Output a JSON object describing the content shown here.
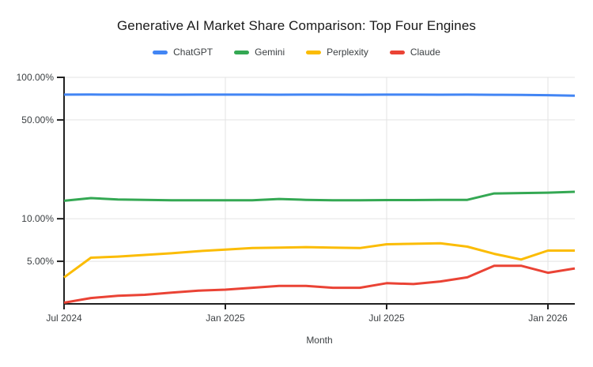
{
  "title": "Generative AI Market Share Comparison: Top Four Engines",
  "chart_data": {
    "type": "line",
    "title": "Generative AI Market Share Comparison: Top Four Engines",
    "x_axis": {
      "label": "Month",
      "tick_labels": [
        "Jul 2024",
        "Jan 2025",
        "Jul 2025",
        "Jan 2026"
      ],
      "tick_indices": [
        0,
        6,
        12,
        18
      ]
    },
    "y_axis": {
      "scale": "log",
      "min": 2.5,
      "max": 100,
      "ticks": [
        100,
        50,
        10,
        5
      ],
      "tick_labels": [
        "100.00%",
        "50.00%",
        "10.00%",
        "5.00%"
      ],
      "unit": "%"
    },
    "categories": [
      "Jul 2024",
      "Aug 2024",
      "Sep 2024",
      "Oct 2024",
      "Nov 2024",
      "Dec 2024",
      "Jan 2025",
      "Feb 2025",
      "Mar 2025",
      "Apr 2025",
      "May 2025",
      "Jun 2025",
      "Jul 2025",
      "Aug 2025",
      "Sep 2025",
      "Oct 2025",
      "Nov 2025",
      "Dec 2025",
      "Jan 2026",
      "Feb 2026"
    ],
    "series": [
      {
        "name": "ChatGPT",
        "color": "#4285f4",
        "values": [
          75.5,
          75.6,
          75.5,
          75.5,
          75.4,
          75.5,
          75.5,
          75.5,
          75.4,
          75.5,
          75.5,
          75.4,
          75.5,
          75.5,
          75.4,
          75.5,
          75.3,
          75.2,
          74.8,
          74.2
        ]
      },
      {
        "name": "Gemini",
        "color": "#34a853",
        "values": [
          13.4,
          14.0,
          13.7,
          13.6,
          13.5,
          13.5,
          13.5,
          13.5,
          13.8,
          13.6,
          13.5,
          13.5,
          13.55,
          13.55,
          13.6,
          13.6,
          15.1,
          15.2,
          15.3,
          15.5
        ]
      },
      {
        "name": "Perplexity",
        "color": "#fbbc04",
        "values": [
          3.85,
          5.3,
          5.4,
          5.55,
          5.7,
          5.9,
          6.05,
          6.2,
          6.25,
          6.3,
          6.25,
          6.2,
          6.6,
          6.65,
          6.7,
          6.35,
          5.65,
          5.15,
          5.95,
          5.95
        ]
      },
      {
        "name": "Claude",
        "color": "#ea4335",
        "values": [
          2.55,
          2.75,
          2.85,
          2.9,
          3.0,
          3.1,
          3.15,
          3.25,
          3.35,
          3.35,
          3.25,
          3.25,
          3.5,
          3.45,
          3.6,
          3.85,
          4.65,
          4.65,
          4.15,
          4.45
        ]
      }
    ],
    "grid": true,
    "legend_position": "top"
  },
  "colors": {
    "background": "#ffffff",
    "grid": "#e3e3e3",
    "axis": "#212121",
    "axis_text": "#3c4043",
    "title_text": "#1a1a1a"
  }
}
